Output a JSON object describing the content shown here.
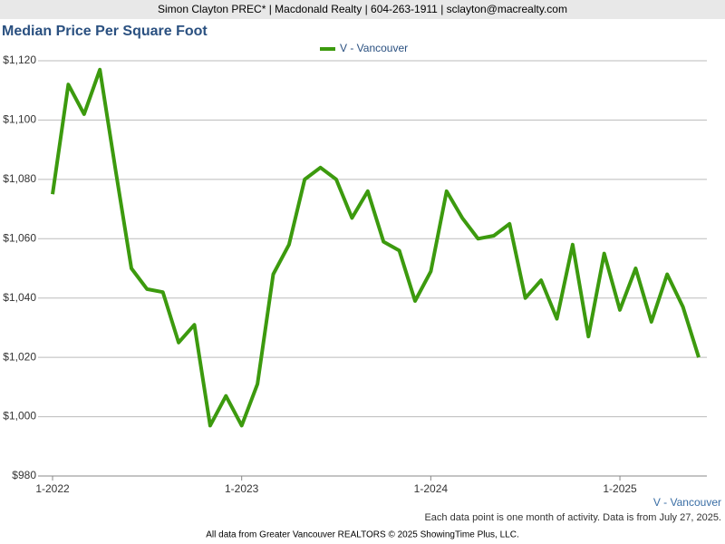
{
  "header": "Simon Clayton PREC* | Macdonald Realty | 604-263-1911 | sclayton@macrealty.com",
  "chart_data": {
    "type": "line",
    "title": "Median Price Per Square Foot",
    "categories": [
      "1-2022",
      null,
      null,
      null,
      null,
      null,
      null,
      null,
      null,
      null,
      null,
      null,
      "1-2023",
      null,
      null,
      null,
      null,
      null,
      null,
      null,
      null,
      null,
      null,
      null,
      "1-2024",
      null,
      null,
      null,
      null,
      null,
      null,
      null,
      null,
      null,
      null,
      null,
      "1-2025",
      null,
      null,
      null,
      null,
      null
    ],
    "series": [
      {
        "name": "V - Vancouver",
        "color": "#3c9a0e",
        "values": [
          1075,
          1112,
          1102,
          1117,
          1083,
          1050,
          1043,
          1042,
          1025,
          1031,
          997,
          1007,
          997,
          1011,
          1048,
          1058,
          1080,
          1084,
          1080,
          1067,
          1076,
          1059,
          1056,
          1039,
          1049,
          1076,
          1067,
          1060,
          1061,
          1065,
          1040,
          1046,
          1033,
          1058,
          1027,
          1055,
          1036,
          1050,
          1032,
          1048,
          1037,
          1020
        ]
      }
    ],
    "ylim": [
      980,
      1120
    ],
    "yticks": [
      {
        "value": 980,
        "label": "$980"
      },
      {
        "value": 1000,
        "label": "$1,000"
      },
      {
        "value": 1020,
        "label": "$1,020"
      },
      {
        "value": 1040,
        "label": "$1,040"
      },
      {
        "value": 1060,
        "label": "$1,060"
      },
      {
        "value": 1080,
        "label": "$1,080"
      },
      {
        "value": 1100,
        "label": "$1,100"
      },
      {
        "value": 1120,
        "label": "$1,120"
      }
    ],
    "grid": true,
    "area_label": "V - Vancouver",
    "note": "Each data point is one month of activity. Data is from July 27, 2025."
  },
  "footer": "All data from Greater Vancouver REALTORS © 2025 ShowingTime Plus, LLC."
}
